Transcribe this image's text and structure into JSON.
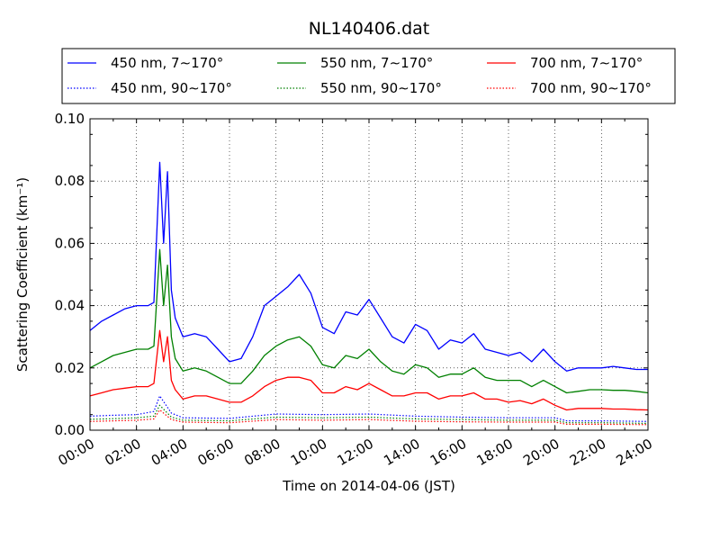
{
  "chart_data": {
    "type": "line",
    "title": "NL140406.dat",
    "xlabel": "Time on 2014-04-06 (JST)",
    "ylabel": "Scattering Coefficient (km⁻¹)",
    "ylim": [
      0.0,
      0.1
    ],
    "xlim": [
      "00:00",
      "24:00"
    ],
    "x_ticks": [
      "00:00",
      "02:00",
      "04:00",
      "06:00",
      "08:00",
      "10:00",
      "12:00",
      "14:00",
      "16:00",
      "18:00",
      "20:00",
      "22:00",
      "24:00"
    ],
    "y_ticks": [
      "0.00",
      "0.02",
      "0.04",
      "0.06",
      "0.08",
      "0.10"
    ],
    "grid": true,
    "legend_position": "top, above plot",
    "series": [
      {
        "name": "450 nm, 7∼170°",
        "color": "#0000ff",
        "style": "solid",
        "x": [
          "00:00",
          "00:30",
          "01:00",
          "01:30",
          "02:00",
          "02:30",
          "02:45",
          "03:00",
          "03:10",
          "03:20",
          "03:30",
          "03:40",
          "04:00",
          "04:30",
          "05:00",
          "05:30",
          "06:00",
          "06:30",
          "07:00",
          "07:30",
          "08:00",
          "08:30",
          "09:00",
          "09:30",
          "10:00",
          "10:30",
          "11:00",
          "11:30",
          "12:00",
          "12:30",
          "13:00",
          "13:30",
          "14:00",
          "14:30",
          "15:00",
          "15:30",
          "16:00",
          "16:30",
          "17:00",
          "17:30",
          "18:00",
          "18:30",
          "19:00",
          "19:30",
          "20:00",
          "20:30",
          "21:00",
          "21:30",
          "22:00",
          "22:30",
          "23:00",
          "23:30",
          "24:00"
        ],
        "values": [
          0.032,
          0.035,
          0.037,
          0.039,
          0.04,
          0.04,
          0.041,
          0.086,
          0.06,
          0.083,
          0.045,
          0.036,
          0.03,
          0.031,
          0.03,
          0.026,
          0.022,
          0.023,
          0.03,
          0.04,
          0.043,
          0.046,
          0.05,
          0.044,
          0.033,
          0.031,
          0.038,
          0.037,
          0.042,
          0.036,
          0.03,
          0.028,
          0.034,
          0.032,
          0.026,
          0.029,
          0.028,
          0.031,
          0.026,
          0.025,
          0.024,
          0.025,
          0.022,
          0.026,
          0.022,
          0.019,
          0.02,
          0.02,
          0.02,
          0.0205,
          0.02,
          0.0195,
          0.0195
        ]
      },
      {
        "name": "450 nm, 90∼170°",
        "color": "#0000ff",
        "style": "dotted",
        "x": [
          "00:00",
          "01:00",
          "02:00",
          "02:45",
          "03:00",
          "03:30",
          "04:00",
          "06:00",
          "08:00",
          "10:00",
          "12:00",
          "14:00",
          "16:00",
          "18:00",
          "20:00",
          "20:30",
          "22:00",
          "24:00"
        ],
        "values": [
          0.0045,
          0.0048,
          0.005,
          0.006,
          0.011,
          0.0055,
          0.004,
          0.0038,
          0.0052,
          0.005,
          0.0052,
          0.0045,
          0.0042,
          0.004,
          0.004,
          0.003,
          0.003,
          0.0028
        ]
      },
      {
        "name": "550 nm, 7∼170°",
        "color": "#008000",
        "style": "solid",
        "x": [
          "00:00",
          "00:30",
          "01:00",
          "01:30",
          "02:00",
          "02:30",
          "02:45",
          "03:00",
          "03:10",
          "03:20",
          "03:30",
          "03:40",
          "04:00",
          "04:30",
          "05:00",
          "05:30",
          "06:00",
          "06:30",
          "07:00",
          "07:30",
          "08:00",
          "08:30",
          "09:00",
          "09:30",
          "10:00",
          "10:30",
          "11:00",
          "11:30",
          "12:00",
          "12:30",
          "13:00",
          "13:30",
          "14:00",
          "14:30",
          "15:00",
          "15:30",
          "16:00",
          "16:30",
          "17:00",
          "17:30",
          "18:00",
          "18:30",
          "19:00",
          "19:30",
          "20:00",
          "20:30",
          "21:00",
          "21:30",
          "22:00",
          "22:30",
          "23:00",
          "23:30",
          "24:00"
        ],
        "values": [
          0.02,
          0.022,
          0.024,
          0.025,
          0.026,
          0.026,
          0.027,
          0.058,
          0.04,
          0.053,
          0.03,
          0.023,
          0.019,
          0.02,
          0.019,
          0.017,
          0.015,
          0.015,
          0.019,
          0.024,
          0.027,
          0.029,
          0.03,
          0.027,
          0.021,
          0.02,
          0.024,
          0.023,
          0.026,
          0.022,
          0.019,
          0.018,
          0.021,
          0.02,
          0.017,
          0.018,
          0.018,
          0.02,
          0.017,
          0.016,
          0.016,
          0.016,
          0.014,
          0.016,
          0.014,
          0.012,
          0.0125,
          0.013,
          0.013,
          0.0128,
          0.0128,
          0.0125,
          0.012
        ]
      },
      {
        "name": "550 nm, 90∼170°",
        "color": "#008000",
        "style": "dotted",
        "x": [
          "00:00",
          "01:00",
          "02:00",
          "02:45",
          "03:00",
          "03:30",
          "04:00",
          "06:00",
          "08:00",
          "10:00",
          "12:00",
          "14:00",
          "16:00",
          "18:00",
          "20:00",
          "20:30",
          "22:00",
          "24:00"
        ],
        "values": [
          0.0035,
          0.0037,
          0.004,
          0.0045,
          0.008,
          0.0042,
          0.0032,
          0.003,
          0.0042,
          0.004,
          0.0042,
          0.0036,
          0.0034,
          0.0032,
          0.0032,
          0.0024,
          0.0024,
          0.0022
        ]
      },
      {
        "name": "700 nm, 7∼170°",
        "color": "#ff0000",
        "style": "solid",
        "x": [
          "00:00",
          "00:30",
          "01:00",
          "01:30",
          "02:00",
          "02:30",
          "02:45",
          "03:00",
          "03:10",
          "03:20",
          "03:30",
          "03:40",
          "04:00",
          "04:30",
          "05:00",
          "05:30",
          "06:00",
          "06:30",
          "07:00",
          "07:30",
          "08:00",
          "08:30",
          "09:00",
          "09:30",
          "10:00",
          "10:30",
          "11:00",
          "11:30",
          "12:00",
          "12:30",
          "13:00",
          "13:30",
          "14:00",
          "14:30",
          "15:00",
          "15:30",
          "16:00",
          "16:30",
          "17:00",
          "17:30",
          "18:00",
          "18:30",
          "19:00",
          "19:30",
          "20:00",
          "20:30",
          "21:00",
          "21:30",
          "22:00",
          "22:30",
          "23:00",
          "23:30",
          "24:00"
        ],
        "values": [
          0.011,
          0.012,
          0.013,
          0.0135,
          0.014,
          0.014,
          0.015,
          0.032,
          0.022,
          0.03,
          0.016,
          0.013,
          0.01,
          0.011,
          0.011,
          0.01,
          0.009,
          0.009,
          0.011,
          0.014,
          0.016,
          0.017,
          0.017,
          0.016,
          0.012,
          0.012,
          0.014,
          0.013,
          0.015,
          0.013,
          0.011,
          0.011,
          0.012,
          0.012,
          0.01,
          0.011,
          0.011,
          0.012,
          0.01,
          0.01,
          0.009,
          0.0095,
          0.0085,
          0.01,
          0.008,
          0.0065,
          0.007,
          0.007,
          0.007,
          0.0068,
          0.0068,
          0.0066,
          0.0065
        ]
      },
      {
        "name": "700 nm, 90∼170°",
        "color": "#ff0000",
        "style": "dotted",
        "x": [
          "00:00",
          "01:00",
          "02:00",
          "02:45",
          "03:00",
          "03:30",
          "04:00",
          "06:00",
          "08:00",
          "10:00",
          "12:00",
          "14:00",
          "16:00",
          "18:00",
          "20:00",
          "20:30",
          "22:00",
          "24:00"
        ],
        "values": [
          0.0028,
          0.003,
          0.0032,
          0.0036,
          0.0065,
          0.0034,
          0.0026,
          0.0024,
          0.0034,
          0.0032,
          0.0034,
          0.0029,
          0.0027,
          0.0026,
          0.0026,
          0.0019,
          0.0019,
          0.0018
        ]
      }
    ]
  }
}
